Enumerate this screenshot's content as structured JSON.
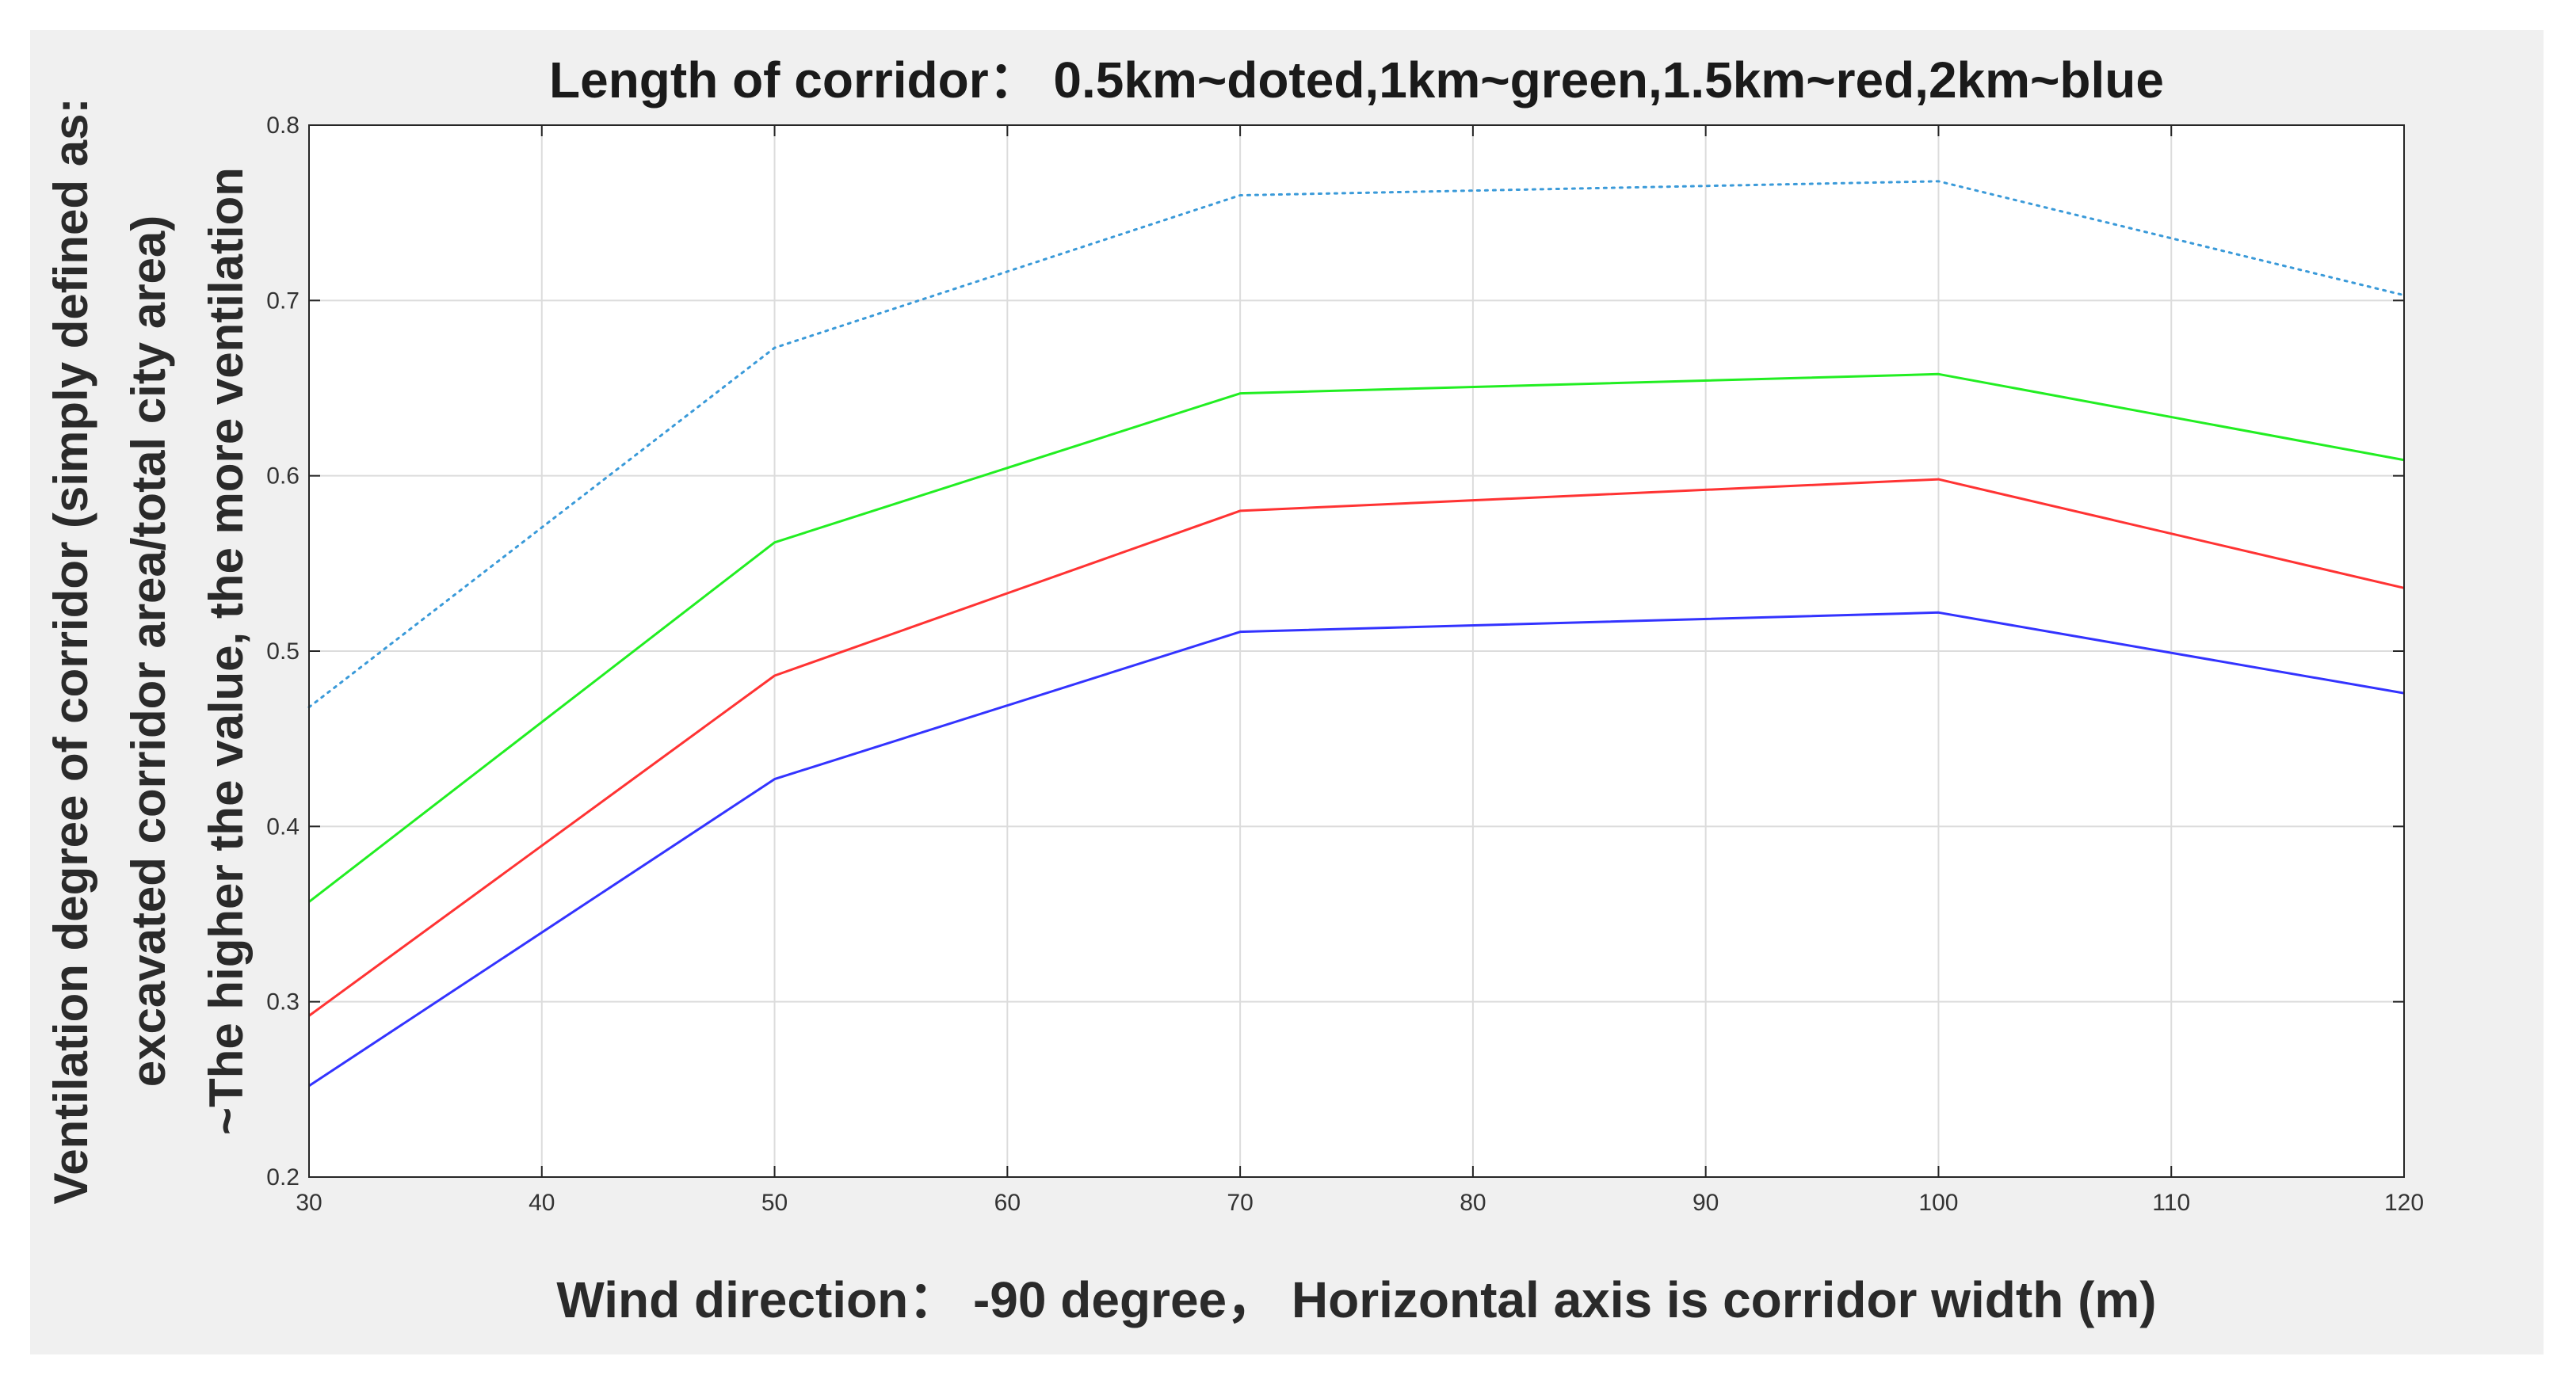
{
  "chart_data": {
    "type": "line",
    "title": "Length of corridor： 0.5km~doted,1km~green,1.5km~red,2km~blue",
    "xlabel": "Wind direction： -90 degree， Horizontal axis is corridor width (m)",
    "ylabel_lines": [
      "Ventilation degree of corridor (simply defined as:",
      "excavated corridor area/total city area)",
      "~The higher the value, the more ventilation"
    ],
    "xlim": [
      30,
      120
    ],
    "ylim": [
      0.2,
      0.8
    ],
    "xticks": [
      "30",
      "40",
      "50",
      "60",
      "70",
      "80",
      "90",
      "100",
      "110",
      "120"
    ],
    "yticks": [
      "0.2",
      "0.3",
      "0.4",
      "0.5",
      "0.6",
      "0.7",
      "0.8"
    ],
    "grid": true,
    "x": [
      30,
      50,
      70,
      100,
      120
    ],
    "series": [
      {
        "color": "#3a9ad9",
        "style": "dotted",
        "values": [
          0.468,
          0.673,
          0.76,
          0.768,
          0.703
        ]
      },
      {
        "color": "#22ee22",
        "style": "solid",
        "values": [
          0.357,
          0.562,
          0.647,
          0.658,
          0.609
        ]
      },
      {
        "color": "#ff3333",
        "style": "solid",
        "values": [
          0.292,
          0.486,
          0.58,
          0.598,
          0.536
        ]
      },
      {
        "color": "#3333ff",
        "style": "solid",
        "values": [
          0.252,
          0.427,
          0.511,
          0.522,
          0.476
        ]
      }
    ]
  }
}
